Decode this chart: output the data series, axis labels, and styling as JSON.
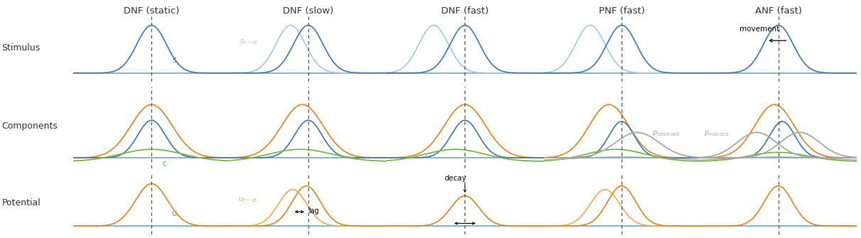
{
  "cols": [
    "DNF (static)",
    "DNF (slow)",
    "DNF (fast)",
    "PNF (fast)",
    "ANF (fast)"
  ],
  "rows": [
    "Stimulus",
    "Components",
    "Potential"
  ],
  "colors": {
    "blue_dark": "#4a7fb5",
    "blue_light": "#a8cce0",
    "orange_dark": "#e8892b",
    "orange_light": "#f0b060",
    "green": "#7bb84a",
    "gray": "#a8a8a8",
    "baseline": "#7ab8d4",
    "dashed": "#666666",
    "text": "#444444"
  },
  "figsize": [
    12.12,
    3.35
  ],
  "dpi": 100
}
